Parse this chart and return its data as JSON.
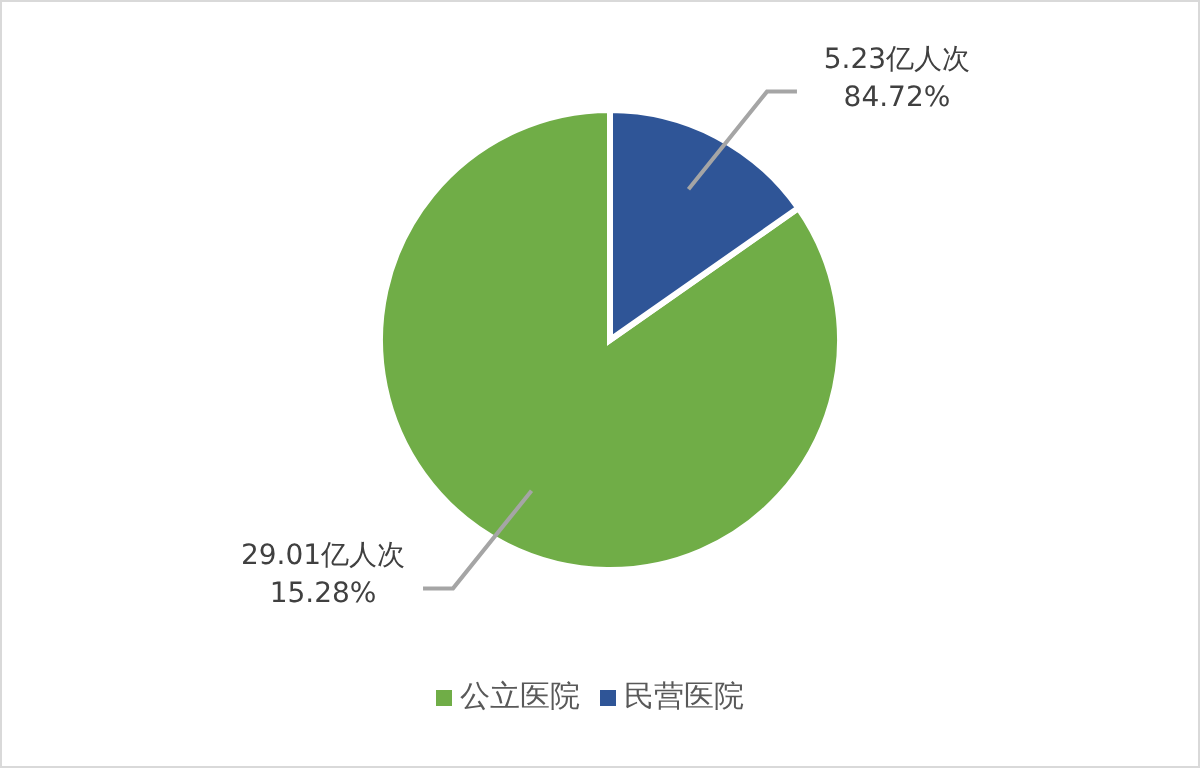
{
  "chart_data": {
    "type": "pie",
    "categories": [
      "公立医院",
      "民营医院"
    ],
    "values": [
      29.01,
      5.23
    ],
    "colors": [
      "#70ad47",
      "#2f5597"
    ],
    "value_labels": [
      "29.01亿人次\n15.28%",
      "5.23亿人次\n84.72%"
    ],
    "legend": "bottom"
  }
}
